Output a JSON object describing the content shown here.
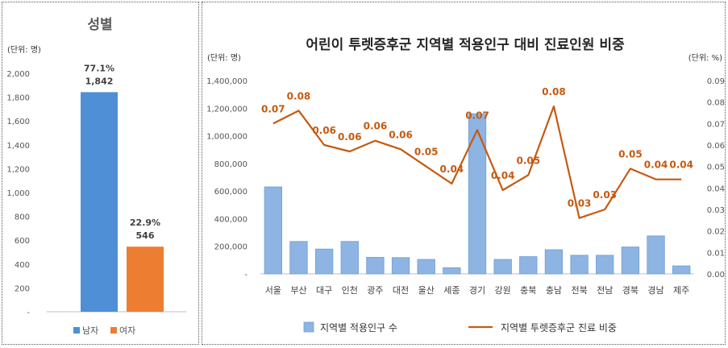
{
  "chart_data": [
    {
      "type": "bar",
      "title": "성별",
      "unit_label": "(단위: 명)",
      "categories": [
        "남자",
        "여자"
      ],
      "values": [
        1842,
        546
      ],
      "value_labels": [
        "1,842",
        "546"
      ],
      "percent_labels": [
        "77.1%",
        "22.9%"
      ],
      "colors": [
        "#4f8fd6",
        "#ed7d31"
      ],
      "ylim": [
        0,
        2000
      ],
      "yticks": [
        0,
        200,
        400,
        600,
        800,
        1000,
        1200,
        1400,
        1600,
        1800,
        2000
      ],
      "ytick_labels": [
        "-",
        "200",
        "400",
        "600",
        "800",
        "1,000",
        "1,200",
        "1,400",
        "1,600",
        "1,800",
        "2,000"
      ],
      "legend": [
        "남자",
        "여자"
      ],
      "legend_position": "bottom",
      "grid": false
    },
    {
      "type": "bar+line",
      "title": "어린이 투렛증후군 지역별 적용인구 대비 진료인원 비중",
      "left_unit_label": "(단위: 명)",
      "right_unit_label": "(단위: %)",
      "categories": [
        "서울",
        "부산",
        "대구",
        "인천",
        "광주",
        "대전",
        "울산",
        "세종",
        "경기",
        "강원",
        "충북",
        "충남",
        "전북",
        "전남",
        "경북",
        "경남",
        "제주"
      ],
      "series": [
        {
          "name": "지역별 적용인구 수",
          "type": "bar",
          "axis": "left",
          "color": "#8db4e2",
          "values": [
            630000,
            235000,
            180000,
            235000,
            120000,
            118000,
            105000,
            45000,
            1160000,
            105000,
            125000,
            175000,
            135000,
            135000,
            195000,
            275000,
            58000
          ]
        },
        {
          "name": "지역별 투렛증후군 진료 비중",
          "type": "line",
          "axis": "right",
          "color": "#c55a11",
          "values": [
            0.07,
            0.076,
            0.06,
            0.057,
            0.062,
            0.058,
            0.05,
            0.042,
            0.067,
            0.039,
            0.046,
            0.078,
            0.026,
            0.03,
            0.049,
            0.044,
            0.044
          ],
          "labels": [
            "0.07",
            "0.08",
            "0.06",
            "0.06",
            "0.06",
            "0.06",
            "0.05",
            "0.04",
            "0.07",
            "0.04",
            "0.05",
            "0.08",
            "0.03",
            "0.03",
            "0.05",
            "0.04",
            "0.04"
          ]
        }
      ],
      "ylim_left": [
        0,
        1400000
      ],
      "yticks_left": [
        0,
        200000,
        400000,
        600000,
        800000,
        1000000,
        1200000,
        1400000
      ],
      "ytick_labels_left": [
        "-",
        "200,000",
        "400,000",
        "600,000",
        "800,000",
        "1,000,000",
        "1,200,000",
        "1,400,000"
      ],
      "ylim_right": [
        0,
        0.09
      ],
      "yticks_right": [
        0,
        0.01,
        0.02,
        0.03,
        0.04,
        0.05,
        0.06,
        0.07,
        0.08,
        0.09
      ],
      "ytick_labels_right": [
        "0.00",
        "0.01",
        "0.02",
        "0.03",
        "0.04",
        "0.05",
        "0.06",
        "0.07",
        "0.08",
        "0.09"
      ],
      "legend_position": "bottom",
      "grid": false
    }
  ]
}
